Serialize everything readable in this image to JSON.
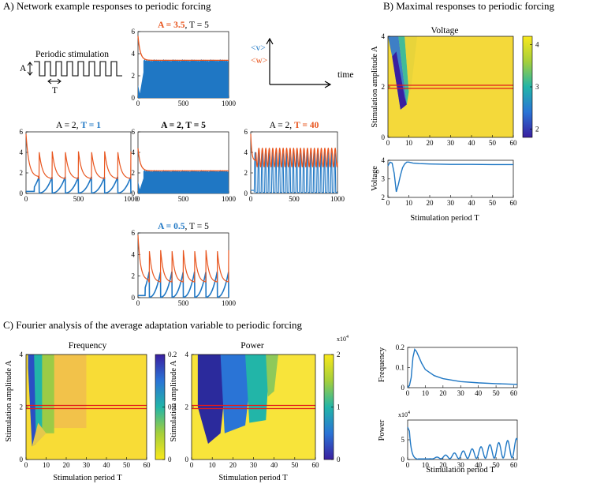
{
  "colors": {
    "v": "#1f77c4",
    "w": "#e8551e",
    "black": "#000000",
    "red_line": "#e21b1b"
  },
  "section_a": {
    "title": "A) Network example responses to periodic forcing",
    "stim_label": "Periodic stimulation",
    "a_label": "A",
    "t_label": "T",
    "legend_v": "<v>",
    "legend_w": "<w>",
    "time_label": "time"
  },
  "section_b": {
    "title": "B) Maximal responses to periodic forcing",
    "heatmap_title": "Voltage",
    "ylabel_heat": "Stimulation amplitude A",
    "ylabel_line": "Voltage",
    "xlabel": "Stimulation period T"
  },
  "section_c": {
    "title": "C) Fourier analysis of the average adaptation variable to periodic forcing",
    "freq_title": "Frequency",
    "power_title": "Power",
    "ylabel": "Stimulation amplitude A",
    "xlabel": "Stimulation period T",
    "line_freq_ylabel": "Frequency",
    "line_power_ylabel": "Power",
    "power_exp": "x10",
    "power_exp_sup": "4"
  },
  "chart_data": [
    {
      "id": "ts1",
      "type": "line",
      "title_parts": [
        {
          "t": "A = 3.5",
          "c": "w",
          "b": true
        },
        {
          "t": ",  T = 5",
          "c": "black",
          "b": false
        }
      ],
      "xlim": [
        0,
        1000
      ],
      "ylim": [
        0,
        6
      ],
      "xticks": [
        0,
        500,
        1000
      ],
      "yticks": [
        0,
        2,
        4,
        6
      ],
      "A": 3.5,
      "T": 5
    },
    {
      "id": "ts2",
      "type": "line",
      "title_parts": [
        {
          "t": "A = 2,  ",
          "c": "black",
          "b": false
        },
        {
          "t": "T = 1",
          "c": "v",
          "b": true
        }
      ],
      "xlim": [
        0,
        1000
      ],
      "ylim": [
        0,
        6
      ],
      "xticks": [
        0,
        500,
        1000
      ],
      "yticks": [
        0,
        2,
        4,
        6
      ],
      "A": 2,
      "T": 1
    },
    {
      "id": "ts3",
      "type": "line",
      "title_parts": [
        {
          "t": "A = 2,  T = 5",
          "c": "black",
          "b": true
        }
      ],
      "xlim": [
        0,
        1000
      ],
      "ylim": [
        0,
        6
      ],
      "xticks": [
        0,
        500,
        1000
      ],
      "yticks": [
        0,
        2,
        4,
        6
      ],
      "A": 2,
      "T": 5
    },
    {
      "id": "ts4",
      "type": "line",
      "title_parts": [
        {
          "t": "A = 2,  ",
          "c": "black",
          "b": false
        },
        {
          "t": "T = 40",
          "c": "w",
          "b": true
        }
      ],
      "xlim": [
        0,
        1000
      ],
      "ylim": [
        0,
        6
      ],
      "xticks": [
        0,
        500,
        1000
      ],
      "yticks": [
        0,
        2,
        4,
        6
      ],
      "A": 2,
      "T": 40
    },
    {
      "id": "ts5",
      "type": "line",
      "title_parts": [
        {
          "t": "A = 0.5",
          "c": "v",
          "b": true
        },
        {
          "t": ",  T = 5",
          "c": "black",
          "b": false
        }
      ],
      "xlim": [
        0,
        1000
      ],
      "ylim": [
        0,
        6
      ],
      "xticks": [
        0,
        500,
        1000
      ],
      "yticks": [
        0,
        2,
        4,
        6
      ],
      "A": 0.5,
      "T": 5
    },
    {
      "id": "volt_heat",
      "type": "heatmap",
      "title": "Voltage",
      "xlim": [
        0,
        60
      ],
      "ylim": [
        0,
        4
      ],
      "xticks": [
        0,
        10,
        20,
        30,
        40,
        50,
        60
      ],
      "yticks": [
        0,
        2,
        4
      ],
      "colorbar_ticks": [
        2,
        3,
        4
      ],
      "colorbar_range": [
        1.8,
        4.2
      ],
      "highlight_A": 2
    },
    {
      "id": "volt_line",
      "type": "line",
      "xlim": [
        0,
        60
      ],
      "ylim": [
        2,
        4
      ],
      "xticks": [
        0,
        10,
        20,
        30,
        40,
        50,
        60
      ],
      "yticks": [
        2,
        3,
        4
      ],
      "x": [
        0,
        1,
        2,
        3,
        4,
        5,
        6,
        7,
        8,
        9,
        10,
        12,
        15,
        20,
        30,
        40,
        50,
        60
      ],
      "y": [
        3.7,
        3.9,
        3.85,
        3.3,
        2.3,
        2.7,
        3.2,
        3.6,
        3.8,
        3.9,
        3.9,
        3.85,
        3.82,
        3.8,
        3.78,
        3.78,
        3.77,
        3.77
      ]
    },
    {
      "id": "freq_heat",
      "type": "heatmap",
      "title": "Frequency",
      "xlim": [
        0,
        60
      ],
      "ylim": [
        0,
        4
      ],
      "xticks": [
        0,
        10,
        20,
        30,
        40,
        50,
        60
      ],
      "yticks": [
        0,
        2,
        4
      ],
      "colorbar_ticks": [
        0,
        0.1,
        0.2
      ],
      "colorbar_range": [
        0,
        0.2
      ],
      "highlight_A": 2
    },
    {
      "id": "power_heat",
      "type": "heatmap",
      "title": "Power",
      "xlim": [
        0,
        60
      ],
      "ylim": [
        0,
        4
      ],
      "xticks": [
        0,
        10,
        20,
        30,
        40,
        50,
        60
      ],
      "yticks": [
        0,
        2,
        4
      ],
      "colorbar_ticks": [
        0,
        1,
        2
      ],
      "colorbar_range": [
        0,
        2
      ],
      "highlight_A": 2
    },
    {
      "id": "freq_line",
      "type": "line",
      "xlim": [
        0,
        62
      ],
      "ylim": [
        0,
        0.2
      ],
      "xticks": [
        0,
        10,
        20,
        30,
        40,
        50,
        60
      ],
      "yticks": [
        0,
        0.1,
        0.2
      ],
      "x": [
        0,
        1,
        2,
        3,
        4,
        5,
        6,
        8,
        10,
        15,
        20,
        30,
        40,
        50,
        60,
        62
      ],
      "y": [
        0.002,
        0.01,
        0.05,
        0.15,
        0.19,
        0.18,
        0.16,
        0.12,
        0.09,
        0.06,
        0.045,
        0.03,
        0.024,
        0.02,
        0.017,
        0.017
      ]
    },
    {
      "id": "power_line",
      "type": "line",
      "xlim": [
        0,
        62
      ],
      "ylim": [
        0,
        10
      ],
      "xticks": [
        0,
        10,
        20,
        30,
        40,
        50,
        60
      ],
      "yticks": [
        0,
        5
      ],
      "exp": "x10",
      "exp_sup": "4"
    }
  ]
}
